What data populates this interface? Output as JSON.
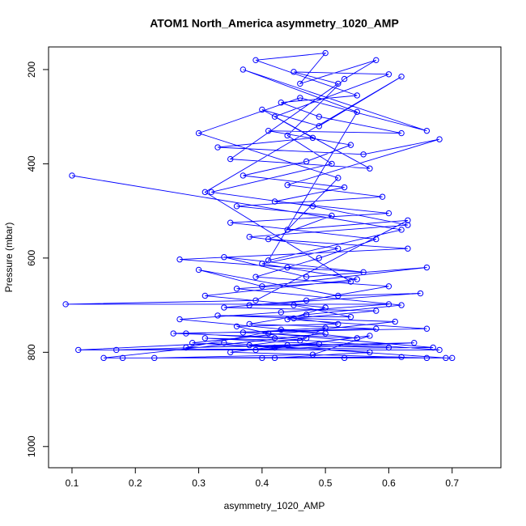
{
  "chart_data": {
    "type": "line",
    "title": "ATOM1 North_America asymmetry_1020_AMP",
    "x_label": "asymmetry_1020_AMP",
    "y_label": "Pressure (mbar)",
    "color": "#0000ff",
    "marker": "circle",
    "xlim": [
      0.063,
      0.777
    ],
    "ylim": [
      1045,
      152
    ],
    "xticks": [
      0.1,
      0.2,
      0.3,
      0.4,
      0.5,
      0.6,
      0.7
    ],
    "yticks": [
      200,
      400,
      600,
      800,
      1000
    ],
    "x": [
      0.1,
      0.62,
      0.41,
      0.55,
      0.37,
      0.66,
      0.46,
      0.3,
      0.52,
      0.44,
      0.63,
      0.39,
      0.09,
      0.6,
      0.43,
      0.27,
      0.5,
      0.15,
      0.69,
      0.34,
      0.11,
      0.68,
      0.42,
      0.28,
      0.58,
      0.38,
      0.47,
      0.62,
      0.36,
      0.54,
      0.31,
      0.62,
      0.49,
      0.4,
      0.57,
      0.35,
      0.52,
      0.45,
      0.6,
      0.42,
      0.48,
      0.33,
      0.56,
      0.68,
      0.44,
      0.59,
      0.36,
      0.51,
      0.41,
      0.63,
      0.27,
      0.44,
      0.56,
      0.34,
      0.47,
      0.66,
      0.4,
      0.3,
      0.52,
      0.65,
      0.38,
      0.45,
      0.54,
      0.33,
      0.61,
      0.29,
      0.42,
      0.57,
      0.48,
      0.23,
      0.62,
      0.4,
      0.18,
      0.53,
      0.66,
      0.35,
      0.44,
      0.6,
      0.31,
      0.46,
      0.5,
      0.37,
      0.55,
      0.43,
      0.28,
      0.64,
      0.39,
      0.49,
      0.17,
      0.67,
      0.41,
      0.36,
      0.52,
      0.45,
      0.58,
      0.34,
      0.47,
      0.6,
      0.39,
      0.49,
      0.58,
      0.35,
      0.6,
      0.42,
      0.53,
      0.37,
      0.47,
      0.54,
      0.41,
      0.62,
      0.49,
      0.43,
      0.55,
      0.39,
      0.5,
      0.46,
      0.58,
      0.53,
      0.44,
      0.51,
      0.32,
      0.48,
      0.63,
      0.38,
      0.52,
      0.4,
      0.55,
      0.31,
      0.5,
      0.44,
      0.66,
      0.26,
      0.47,
      0.38,
      0.57,
      0.42,
      0.7
    ],
    "values": [
      425,
      540,
      605,
      290,
      200,
      330,
      260,
      335,
      430,
      540,
      520,
      690,
      698,
      698,
      715,
      730,
      760,
      812,
      812,
      780,
      795,
      795,
      770,
      760,
      750,
      740,
      720,
      700,
      665,
      650,
      460,
      215,
      320,
      285,
      410,
      390,
      230,
      205,
      210,
      300,
      345,
      365,
      380,
      348,
      445,
      470,
      490,
      510,
      560,
      580,
      603,
      620,
      630,
      598,
      640,
      620,
      660,
      625,
      680,
      675,
      700,
      700,
      725,
      722,
      735,
      780,
      790,
      765,
      805,
      812,
      810,
      812,
      812,
      812,
      812,
      800,
      785,
      790,
      770,
      775,
      748,
      758,
      770,
      752,
      790,
      780,
      795,
      782,
      795,
      790,
      760,
      745,
      740,
      728,
      712,
      705,
      690,
      660,
      640,
      600,
      560,
      525,
      505,
      480,
      450,
      425,
      395,
      360,
      330,
      335,
      300,
      270,
      255,
      180,
      165,
      230,
      180,
      220,
      340,
      400,
      460,
      490,
      530,
      555,
      580,
      612,
      645,
      680,
      705,
      730,
      750,
      760,
      770,
      785,
      800,
      812,
      812
    ]
  }
}
